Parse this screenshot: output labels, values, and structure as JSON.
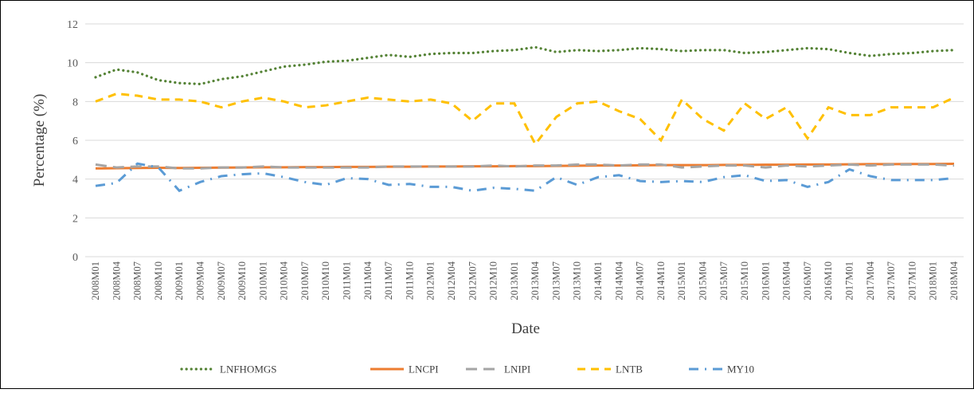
{
  "chart_data": {
    "type": "line",
    "xlabel": "Date",
    "ylabel": "Percentage (%)",
    "categories": [
      "2008M01",
      "2008M04",
      "2008M07",
      "2008M10",
      "2009M01",
      "2009M04",
      "2009M07",
      "2009M10",
      "2010M01",
      "2010M04",
      "2010M07",
      "2010M10",
      "2011M01",
      "2011M04",
      "2011M07",
      "2011M10",
      "2012M01",
      "2012M04",
      "2012M07",
      "2012M10",
      "2013M01",
      "2013M04",
      "2013M07",
      "2013M10",
      "2014M01",
      "2014M04",
      "2014M07",
      "2014M10",
      "2015M01",
      "2015M04",
      "2015M07",
      "2015M10",
      "2016M01",
      "2016M04",
      "2016M07",
      "2016M10",
      "2017M01",
      "2017M04",
      "2017M07",
      "2017M10",
      "2018M01",
      "2018M04"
    ],
    "ylim": [
      0,
      12
    ],
    "yticks": [
      0,
      2,
      4,
      6,
      8,
      10,
      12
    ],
    "grid": true,
    "legend": "bottom",
    "series": [
      {
        "name": "LNFHOMGS",
        "color": "#548235",
        "style": "dotted",
        "values": [
          9.25,
          9.65,
          9.5,
          9.1,
          8.95,
          8.9,
          9.15,
          9.3,
          9.55,
          9.8,
          9.9,
          10.05,
          10.1,
          10.25,
          10.4,
          10.3,
          10.45,
          10.5,
          10.5,
          10.6,
          10.65,
          10.8,
          10.55,
          10.65,
          10.6,
          10.65,
          10.75,
          10.7,
          10.6,
          10.65,
          10.65,
          10.5,
          10.55,
          10.65,
          10.75,
          10.7,
          10.5,
          10.35,
          10.45,
          10.5,
          10.6,
          10.65
        ]
      },
      {
        "name": "LNCPI",
        "color": "#ed7d31",
        "style": "solid",
        "values": [
          4.55,
          4.56,
          4.57,
          4.58,
          4.57,
          4.58,
          4.59,
          4.6,
          4.61,
          4.61,
          4.62,
          4.62,
          4.63,
          4.63,
          4.64,
          4.64,
          4.65,
          4.65,
          4.66,
          4.66,
          4.67,
          4.67,
          4.68,
          4.69,
          4.7,
          4.7,
          4.71,
          4.72,
          4.72,
          4.72,
          4.73,
          4.73,
          4.74,
          4.74,
          4.75,
          4.75,
          4.76,
          4.77,
          4.77,
          4.78,
          4.78,
          4.79
        ]
      },
      {
        "name": "LNIPI",
        "color": "#a5a5a5",
        "style": "longdash",
        "values": [
          4.75,
          4.6,
          4.65,
          4.65,
          4.55,
          4.55,
          4.6,
          4.6,
          4.65,
          4.6,
          4.6,
          4.6,
          4.6,
          4.6,
          4.65,
          4.65,
          4.65,
          4.65,
          4.65,
          4.7,
          4.65,
          4.7,
          4.7,
          4.75,
          4.75,
          4.7,
          4.75,
          4.75,
          4.6,
          4.65,
          4.7,
          4.7,
          4.6,
          4.7,
          4.65,
          4.7,
          4.75,
          4.7,
          4.75,
          4.75,
          4.75,
          4.7
        ]
      },
      {
        "name": "LNTB",
        "color": "#ffc000",
        "style": "dashed",
        "values": [
          8.0,
          8.4,
          8.3,
          8.1,
          8.1,
          8.0,
          7.7,
          8.0,
          8.2,
          8.0,
          7.7,
          7.8,
          8.0,
          8.2,
          8.1,
          8.0,
          8.1,
          7.9,
          7.0,
          7.9,
          7.9,
          5.8,
          7.2,
          7.9,
          8.0,
          7.5,
          7.1,
          6.0,
          8.1,
          7.1,
          6.5,
          7.9,
          7.1,
          7.7,
          6.1,
          7.7,
          7.3,
          7.3,
          7.7,
          7.7,
          7.7,
          8.2
        ]
      },
      {
        "name": "MY10",
        "color": "#5b9bd5",
        "style": "dashdot",
        "values": [
          3.65,
          3.8,
          4.8,
          4.6,
          3.4,
          3.85,
          4.15,
          4.25,
          4.3,
          4.1,
          3.85,
          3.7,
          4.05,
          4.0,
          3.7,
          3.75,
          3.6,
          3.6,
          3.4,
          3.55,
          3.5,
          3.4,
          4.1,
          3.7,
          4.1,
          4.2,
          3.9,
          3.85,
          3.9,
          3.85,
          4.1,
          4.2,
          3.9,
          3.95,
          3.6,
          3.85,
          4.5,
          4.15,
          3.95,
          3.95,
          3.95,
          4.05
        ]
      }
    ]
  }
}
